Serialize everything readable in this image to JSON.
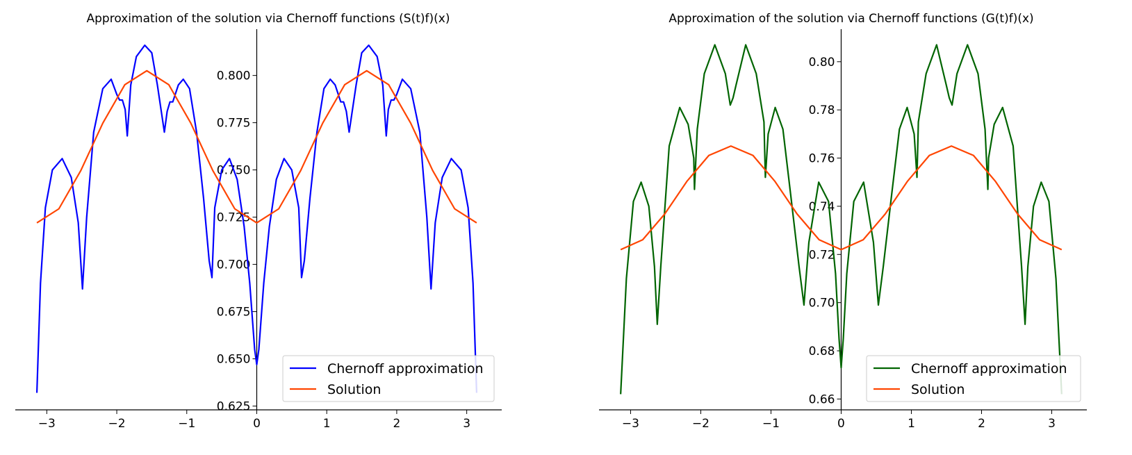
{
  "colors": {
    "approx_left": "#0000ff",
    "approx_right": "#006400",
    "solution": "#ff4500",
    "axis": "#000000",
    "background": "#ffffff"
  },
  "chart_data": [
    {
      "type": "line",
      "title": "Approximation of the solution via Chernoff functions (S(t)f)(x)",
      "xlabel": "",
      "ylabel": "",
      "xlim": [
        -3.45,
        3.5
      ],
      "ylim": [
        0.623,
        0.8245
      ],
      "xticks": [
        -3,
        -2,
        -1,
        0,
        1,
        2,
        3
      ],
      "xtick_labels": [
        "−3",
        "−2",
        "−1",
        "0",
        "1",
        "2",
        "3"
      ],
      "yticks": [
        0.625,
        0.65,
        0.675,
        0.7,
        0.725,
        0.75,
        0.775,
        0.8
      ],
      "ytick_labels": [
        "0.625",
        "0.650",
        "0.675",
        "0.700",
        "0.725",
        "0.750",
        "0.775",
        "0.800"
      ],
      "grid": false,
      "spines": "centered at origin",
      "legend_position": "lower-right",
      "series": [
        {
          "name": "Chernoff approximation",
          "color": "#0000ff",
          "x": [
            -3.1416,
            -3.09,
            -3.02,
            -2.92,
            -2.78,
            -2.65,
            -2.55,
            -2.49,
            -2.43,
            -2.33,
            -2.2,
            -2.08,
            -2.0,
            -1.96,
            -1.92,
            -1.88,
            -1.85,
            -1.8,
            -1.72,
            -1.6,
            -1.5,
            -1.42,
            -1.36,
            -1.32,
            -1.28,
            -1.24,
            -1.2,
            -1.12,
            -1.05,
            -0.96,
            -0.86,
            -0.76,
            -0.68,
            -0.64,
            -0.6,
            -0.5,
            -0.39,
            -0.28,
            -0.18,
            -0.1,
            -0.03,
            0,
            0.03,
            0.1,
            0.18,
            0.28,
            0.39,
            0.5,
            0.6,
            0.64,
            0.68,
            0.76,
            0.86,
            0.96,
            1.05,
            1.12,
            1.2,
            1.24,
            1.28,
            1.32,
            1.36,
            1.42,
            1.5,
            1.6,
            1.72,
            1.8,
            1.85,
            1.88,
            1.92,
            1.96,
            2.0,
            2.08,
            2.2,
            2.33,
            2.43,
            2.49,
            2.55,
            2.65,
            2.78,
            2.92,
            3.02,
            3.09,
            3.1416
          ],
          "y": [
            0.632,
            0.69,
            0.73,
            0.75,
            0.756,
            0.746,
            0.722,
            0.687,
            0.725,
            0.77,
            0.793,
            0.798,
            0.79,
            0.787,
            0.787,
            0.782,
            0.768,
            0.795,
            0.81,
            0.816,
            0.812,
            0.795,
            0.78,
            0.77,
            0.781,
            0.786,
            0.786,
            0.795,
            0.798,
            0.793,
            0.77,
            0.735,
            0.702,
            0.693,
            0.73,
            0.75,
            0.756,
            0.745,
            0.72,
            0.69,
            0.655,
            0.647,
            0.655,
            0.69,
            0.72,
            0.745,
            0.756,
            0.75,
            0.73,
            0.693,
            0.702,
            0.735,
            0.77,
            0.793,
            0.798,
            0.795,
            0.786,
            0.786,
            0.781,
            0.77,
            0.78,
            0.795,
            0.812,
            0.816,
            0.81,
            0.795,
            0.768,
            0.782,
            0.787,
            0.787,
            0.79,
            0.798,
            0.793,
            0.77,
            0.725,
            0.687,
            0.722,
            0.746,
            0.756,
            0.75,
            0.73,
            0.69,
            0.632
          ]
        },
        {
          "name": "Solution",
          "color": "#ff4500",
          "x": [
            -3.1416,
            -2.8274,
            -2.5133,
            -2.1991,
            -1.885,
            -1.5708,
            -1.2566,
            -0.9425,
            -0.6283,
            -0.3142,
            0,
            0.3142,
            0.6283,
            0.9425,
            1.2566,
            1.5708,
            1.885,
            2.1991,
            2.5133,
            2.8274,
            3.1416
          ],
          "y": [
            0.722,
            0.7294,
            0.7497,
            0.7748,
            0.7951,
            0.8025,
            0.7951,
            0.7748,
            0.7497,
            0.7294,
            0.722,
            0.7294,
            0.7497,
            0.7748,
            0.7951,
            0.8025,
            0.7951,
            0.7748,
            0.7497,
            0.7294,
            0.722
          ]
        }
      ]
    },
    {
      "type": "line",
      "title": "Approximation of the solution via Chernoff functions (G(t)f)(x)",
      "xlabel": "",
      "ylabel": "",
      "xlim": [
        -3.45,
        3.5
      ],
      "ylim": [
        0.6555,
        0.8135
      ],
      "xticks": [
        -3,
        -2,
        -1,
        0,
        1,
        2,
        3
      ],
      "xtick_labels": [
        "−3",
        "−2",
        "−1",
        "0",
        "1",
        "2",
        "3"
      ],
      "yticks": [
        0.66,
        0.68,
        0.7,
        0.72,
        0.74,
        0.76,
        0.78,
        0.8
      ],
      "ytick_labels": [
        "0.66",
        "0.68",
        "0.70",
        "0.72",
        "0.74",
        "0.76",
        "0.78",
        "0.80"
      ],
      "grid": false,
      "spines": "centered at origin",
      "legend_position": "lower-right",
      "series": [
        {
          "name": "Chernoff approximation",
          "color": "#006400",
          "x": [
            -3.1416,
            -3.06,
            -2.96,
            -2.85,
            -2.74,
            -2.66,
            -2.62,
            -2.57,
            -2.45,
            -2.3,
            -2.18,
            -2.1,
            -2.09,
            -2.05,
            -1.95,
            -1.8,
            -1.65,
            -1.58,
            -1.54,
            -1.5,
            -1.36,
            -1.21,
            -1.1,
            -1.08,
            -1.04,
            -0.94,
            -0.83,
            -0.72,
            -0.6,
            -0.53,
            -0.46,
            -0.32,
            -0.18,
            -0.08,
            -0.03,
            0,
            0.03,
            0.08,
            0.18,
            0.32,
            0.46,
            0.53,
            0.6,
            0.72,
            0.83,
            0.94,
            1.04,
            1.08,
            1.1,
            1.21,
            1.36,
            1.5,
            1.54,
            1.58,
            1.65,
            1.8,
            1.95,
            2.05,
            2.09,
            2.1,
            2.18,
            2.3,
            2.45,
            2.57,
            2.62,
            2.66,
            2.74,
            2.85,
            2.96,
            3.06,
            3.1416
          ],
          "y": [
            0.662,
            0.71,
            0.742,
            0.75,
            0.74,
            0.715,
            0.691,
            0.715,
            0.765,
            0.781,
            0.774,
            0.76,
            0.747,
            0.772,
            0.795,
            0.807,
            0.795,
            0.782,
            0.785,
            0.79,
            0.807,
            0.795,
            0.775,
            0.752,
            0.77,
            0.781,
            0.772,
            0.745,
            0.715,
            0.699,
            0.725,
            0.75,
            0.742,
            0.712,
            0.685,
            0.673,
            0.685,
            0.712,
            0.742,
            0.75,
            0.725,
            0.699,
            0.715,
            0.745,
            0.772,
            0.781,
            0.77,
            0.752,
            0.775,
            0.795,
            0.807,
            0.79,
            0.785,
            0.782,
            0.795,
            0.807,
            0.795,
            0.772,
            0.747,
            0.76,
            0.774,
            0.781,
            0.765,
            0.715,
            0.691,
            0.715,
            0.74,
            0.75,
            0.742,
            0.71,
            0.662
          ]
        },
        {
          "name": "Solution",
          "color": "#ff4500",
          "x": [
            -3.1416,
            -2.8274,
            -2.5133,
            -2.1991,
            -1.885,
            -1.5708,
            -1.2566,
            -0.9425,
            -0.6283,
            -0.3142,
            0,
            0.3142,
            0.6283,
            0.9425,
            1.2566,
            1.5708,
            1.885,
            2.1991,
            2.5133,
            2.8274,
            3.1416
          ],
          "y": [
            0.722,
            0.7261,
            0.7368,
            0.7503,
            0.7611,
            0.765,
            0.7611,
            0.7503,
            0.7368,
            0.7261,
            0.722,
            0.7261,
            0.7368,
            0.7503,
            0.7611,
            0.765,
            0.7611,
            0.7503,
            0.7368,
            0.7261,
            0.722
          ]
        }
      ]
    }
  ]
}
